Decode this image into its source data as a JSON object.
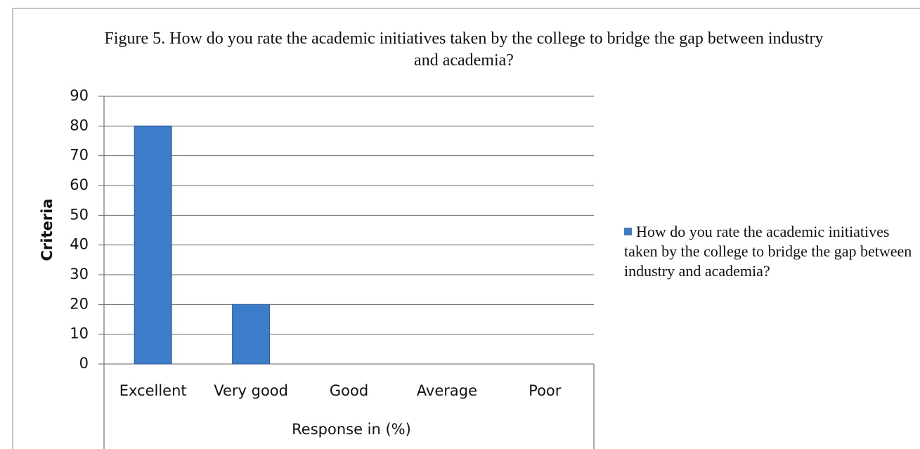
{
  "chart_data": {
    "type": "bar",
    "title": "Figure 5. How do you rate the academic initiatives taken by the college to bridge the gap between industry and academia?",
    "x_label": "Response in (%)",
    "y_label": "Criteria",
    "categories": [
      "Excellent",
      "Very good",
      "Good",
      "Average",
      "Poor"
    ],
    "series": [
      {
        "name": "How do you rate the academic initiatives taken by the college to bridge the gap between industry and academia?",
        "color": "#3d7cc9",
        "values": [
          80,
          20,
          0,
          0,
          0
        ]
      }
    ],
    "ylim": [
      0,
      90
    ],
    "yticks": [
      0,
      10,
      20,
      30,
      40,
      50,
      60,
      70,
      80,
      90
    ],
    "grid": true,
    "legend": "right"
  }
}
